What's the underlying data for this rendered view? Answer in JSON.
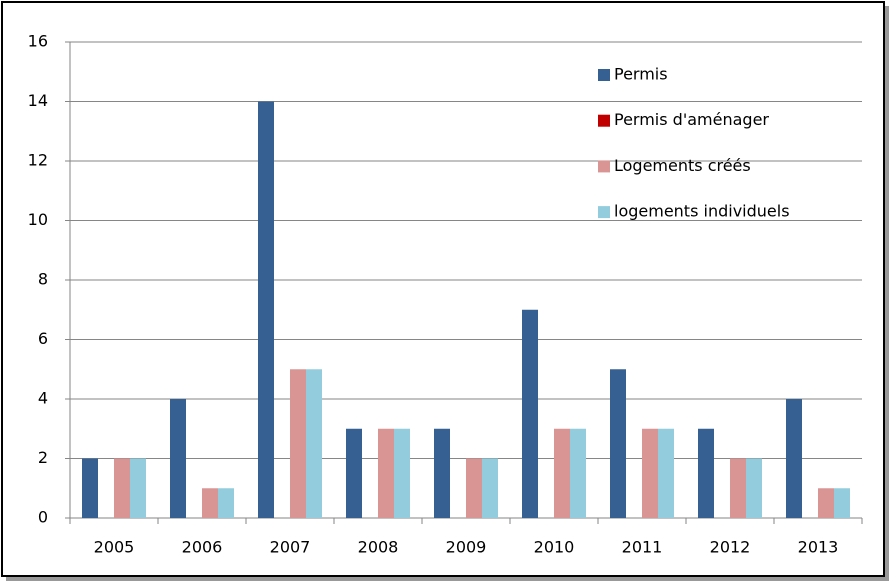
{
  "chart_data": {
    "type": "bar",
    "categories": [
      "2005",
      "2006",
      "2007",
      "2008",
      "2009",
      "2010",
      "2011",
      "2012",
      "2013"
    ],
    "series": [
      {
        "name": "Permis",
        "color": "#376092",
        "values": [
          2,
          4,
          14,
          3,
          3,
          7,
          5,
          3,
          4
        ]
      },
      {
        "name": "Permis d'aménager",
        "color": "#c00000",
        "values": [
          0,
          0,
          0,
          0,
          0,
          0,
          0,
          0,
          0
        ]
      },
      {
        "name": "Logements créés",
        "color": "#d99594",
        "values": [
          2,
          1,
          5,
          3,
          2,
          3,
          3,
          2,
          1
        ]
      },
      {
        "name": "logements individuels",
        "color": "#93cddd",
        "values": [
          2,
          1,
          5,
          3,
          2,
          3,
          3,
          2,
          1
        ]
      }
    ],
    "ylim": [
      0,
      16
    ],
    "yticks": [
      0,
      2,
      4,
      6,
      8,
      10,
      12,
      14,
      16
    ],
    "grid": true,
    "legend": "upper right"
  }
}
